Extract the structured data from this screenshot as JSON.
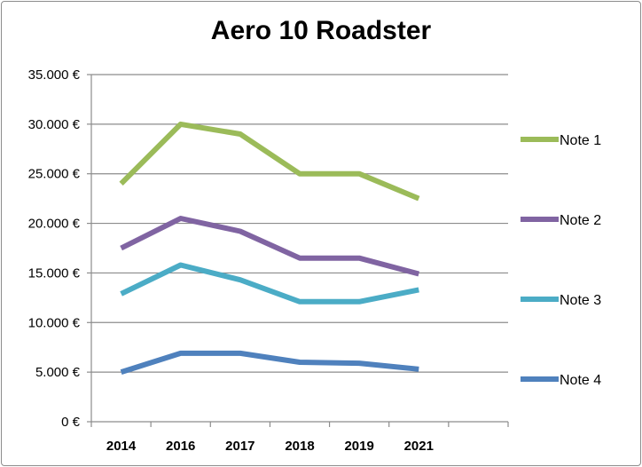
{
  "chart_data": {
    "type": "line",
    "title": "Aero 10 Roadster",
    "xlabel": "",
    "ylabel": "",
    "categories": [
      "2014",
      "2016",
      "2017",
      "2018",
      "2019",
      "2021"
    ],
    "ylim": [
      0,
      35000
    ],
    "yticks": [
      0,
      5000,
      10000,
      15000,
      20000,
      25000,
      30000,
      35000
    ],
    "ytick_labels": [
      "0 €",
      "5.000 €",
      "10.000 €",
      "15.000 €",
      "20.000 €",
      "25.000 €",
      "30.000 €",
      "35.000 €"
    ],
    "grid": true,
    "legend": "right",
    "series": [
      {
        "name": "Note 1",
        "color": "#9bbb59",
        "values": [
          24000,
          30000,
          29000,
          25000,
          25000,
          22500
        ]
      },
      {
        "name": "Note 2",
        "color": "#8064a2",
        "values": [
          17500,
          20500,
          19200,
          16500,
          16500,
          14900
        ]
      },
      {
        "name": "Note 3",
        "color": "#4bacc6",
        "values": [
          12900,
          15800,
          14300,
          12100,
          12100,
          13300
        ]
      },
      {
        "name": "Note 4",
        "color": "#4f81bd",
        "values": [
          5000,
          6900,
          6900,
          6000,
          5900,
          5300
        ]
      }
    ]
  }
}
